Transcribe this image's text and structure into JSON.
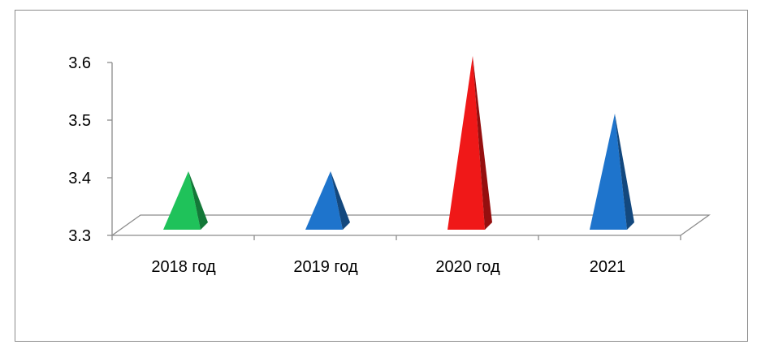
{
  "chart_data": {
    "type": "bar",
    "style": "3d-pyramid",
    "categories": [
      "2018 год",
      "2019 год",
      "2020 год",
      "2021"
    ],
    "values": [
      3.4,
      3.4,
      3.6,
      3.5
    ],
    "bar_colors": [
      "#1fc25a",
      "#1e74cc",
      "#f01818",
      "#1e74cc"
    ],
    "yticks": [
      3.3,
      3.4,
      3.5,
      3.6
    ],
    "ytick_labels": [
      "3.3",
      "3.4",
      "3.5",
      "3.6"
    ],
    "ylim": [
      3.3,
      3.6
    ],
    "title": "",
    "xlabel": "",
    "ylabel": "",
    "legend": "none",
    "grid": false
  }
}
